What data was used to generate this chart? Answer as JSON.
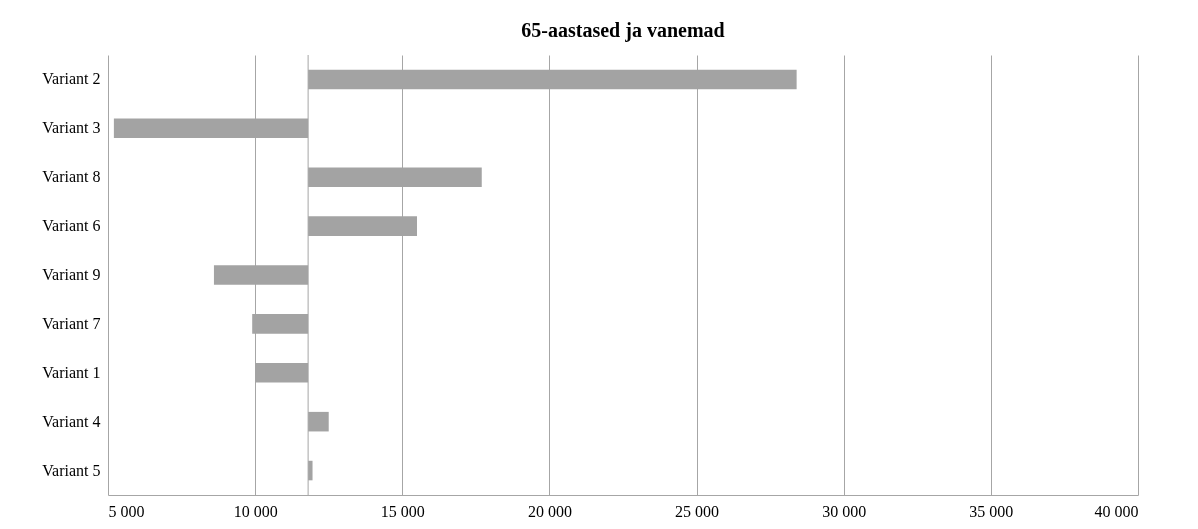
{
  "chart_data": {
    "type": "bar",
    "orientation": "horizontal",
    "title": "65-aastased ja vanemad",
    "categories": [
      "Variant 2",
      "Variant 3",
      "Variant 8",
      "Variant 6",
      "Variant 9",
      "Variant 7",
      "Variant 1",
      "Variant 4",
      "Variant 5"
    ],
    "base": [
      11800,
      11800,
      11800,
      11800,
      11800,
      11800,
      11800,
      11800,
      11800
    ],
    "values": [
      16600,
      -6600,
      5900,
      3700,
      -3200,
      -1900,
      -1800,
      700,
      150
    ],
    "color": "#a3a3a3",
    "xlim": [
      5000,
      40000
    ],
    "xticks": [
      {
        "value": 5000,
        "label": "5 000"
      },
      {
        "value": 10000,
        "label": "10 000"
      },
      {
        "value": 15000,
        "label": "15 000"
      },
      {
        "value": 20000,
        "label": "20 000"
      },
      {
        "value": 25000,
        "label": "25 000"
      },
      {
        "value": 30000,
        "label": "30 000"
      },
      {
        "value": 35000,
        "label": "35 000"
      },
      {
        "value": 40000,
        "label": "40 000"
      }
    ],
    "ref_lines": [
      {
        "axis": "x",
        "value": 11800,
        "color": "#a6a6a6"
      }
    ],
    "grid": "x"
  }
}
